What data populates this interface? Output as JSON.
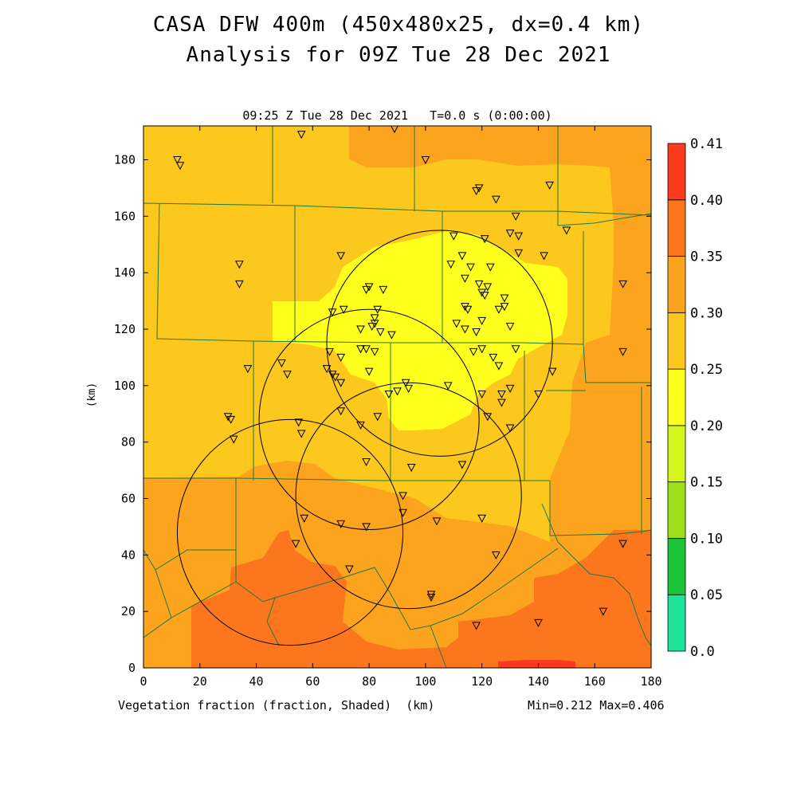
{
  "header": {
    "title_line1": "CASA DFW 400m (450x480x25, dx=0.4 km)",
    "title_line2": "Analysis for 09Z Tue 28 Dec 2021",
    "subtitle": "09:25 Z Tue 28 Dec 2021   T=0.0 s (0:00:00)"
  },
  "footer": {
    "x_caption": "Vegetation fraction (fraction, Shaded)  (km)",
    "min_max": "Min=0.212 Max=0.406"
  },
  "axes": {
    "y_label": "(km)",
    "x_range": [
      0,
      180
    ],
    "y_range": [
      0,
      192
    ],
    "x_ticks": [
      "0",
      "20",
      "40",
      "60",
      "80",
      "100",
      "120",
      "140",
      "160",
      "180"
    ],
    "y_ticks": [
      "0",
      "20",
      "40",
      "60",
      "80",
      "100",
      "120",
      "140",
      "160",
      "180"
    ]
  },
  "colorbar": {
    "labels": [
      "0.0",
      "0.05",
      "0.10",
      "0.15",
      "0.20",
      "0.25",
      "0.30",
      "0.35",
      "0.40",
      "0.41"
    ],
    "colors": [
      "#1ee39a",
      "#1cc43a",
      "#9edf1c",
      "#d4f51e",
      "#ffff1e",
      "#fcc81e",
      "#fca41e",
      "#fc761e",
      "#fc3a1e"
    ]
  },
  "field_colors": {
    "light_yellow": "#ffff1e",
    "yellow_orange": "#fcc81e",
    "orange": "#fca41e",
    "dark_orange": "#fc761e",
    "red": "#fc3a1e",
    "county_lines": "#1f7a3a"
  },
  "radar_rings": [
    {
      "cx": 105,
      "cy": 115,
      "r": 40
    },
    {
      "cx": 80,
      "cy": 88,
      "r": 39
    },
    {
      "cx": 94,
      "cy": 61,
      "r": 40
    },
    {
      "cx": 52,
      "cy": 48,
      "r": 40
    }
  ],
  "stations": [
    [
      56,
      189
    ],
    [
      12,
      180
    ],
    [
      13,
      178
    ],
    [
      89,
      191
    ],
    [
      100,
      180
    ],
    [
      144,
      171
    ],
    [
      118,
      169
    ],
    [
      119,
      170
    ],
    [
      125,
      166
    ],
    [
      150,
      155
    ],
    [
      132,
      160
    ],
    [
      130,
      154
    ],
    [
      133,
      153
    ],
    [
      121,
      152
    ],
    [
      110,
      153
    ],
    [
      34,
      143
    ],
    [
      34,
      136
    ],
    [
      70,
      146
    ],
    [
      113,
      146
    ],
    [
      133,
      147
    ],
    [
      142,
      146
    ],
    [
      109,
      143
    ],
    [
      116,
      142
    ],
    [
      123,
      142
    ],
    [
      114,
      138
    ],
    [
      119,
      136
    ],
    [
      122,
      135
    ],
    [
      120,
      133
    ],
    [
      121,
      132
    ],
    [
      128,
      131
    ],
    [
      170,
      136
    ],
    [
      79,
      134
    ],
    [
      80,
      135
    ],
    [
      85,
      134
    ],
    [
      83,
      127
    ],
    [
      71,
      127
    ],
    [
      67,
      126
    ],
    [
      82,
      124
    ],
    [
      114,
      128
    ],
    [
      115,
      127
    ],
    [
      126,
      127
    ],
    [
      128,
      128
    ],
    [
      77,
      120
    ],
    [
      81,
      121
    ],
    [
      82,
      122
    ],
    [
      84,
      119
    ],
    [
      88,
      118
    ],
    [
      111,
      122
    ],
    [
      114,
      120
    ],
    [
      118,
      119
    ],
    [
      120,
      123
    ],
    [
      130,
      121
    ],
    [
      170,
      112
    ],
    [
      77,
      113
    ],
    [
      79,
      113
    ],
    [
      82,
      112
    ],
    [
      66,
      112
    ],
    [
      70,
      110
    ],
    [
      124,
      110
    ],
    [
      117,
      112
    ],
    [
      120,
      113
    ],
    [
      132,
      113
    ],
    [
      126,
      107
    ],
    [
      49,
      108
    ],
    [
      65,
      106
    ],
    [
      37,
      106
    ],
    [
      51,
      104
    ],
    [
      67,
      104
    ],
    [
      68,
      103
    ],
    [
      70,
      101
    ],
    [
      80,
      105
    ],
    [
      145,
      105
    ],
    [
      93,
      101
    ],
    [
      94,
      99
    ],
    [
      90,
      98
    ],
    [
      87,
      97
    ],
    [
      108,
      100
    ],
    [
      130,
      99
    ],
    [
      127,
      97
    ],
    [
      120,
      97
    ],
    [
      140,
      97
    ],
    [
      127,
      94
    ],
    [
      70,
      91
    ],
    [
      83,
      89
    ],
    [
      122,
      89
    ],
    [
      30,
      89
    ],
    [
      31,
      88
    ],
    [
      55,
      87
    ],
    [
      77,
      86
    ],
    [
      130,
      85
    ],
    [
      56,
      83
    ],
    [
      32,
      81
    ],
    [
      79,
      73
    ],
    [
      95,
      71
    ],
    [
      113,
      72
    ],
    [
      92,
      61
    ],
    [
      92,
      55
    ],
    [
      104,
      52
    ],
    [
      57,
      53
    ],
    [
      70,
      51
    ],
    [
      79,
      50
    ],
    [
      120,
      53
    ],
    [
      54,
      44
    ],
    [
      125,
      40
    ],
    [
      73,
      35
    ],
    [
      170,
      44
    ],
    [
      102,
      26
    ],
    [
      102,
      25
    ],
    [
      163,
      20
    ],
    [
      140,
      16
    ],
    [
      118,
      15
    ]
  ]
}
